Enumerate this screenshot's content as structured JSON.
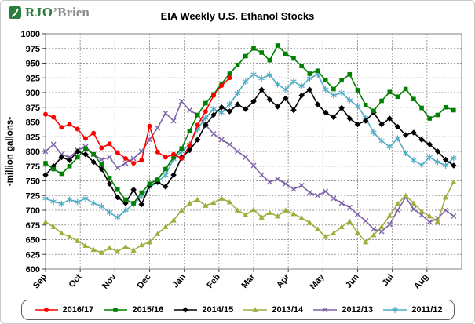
{
  "logo": {
    "green": "RJO",
    "gray": "’Brien"
  },
  "chart_data": {
    "type": "line",
    "title": "EIA Weekly U.S. Ethanol Stocks",
    "ylabel": "-million gallons-",
    "ylim": [
      600,
      1000
    ],
    "yticks": [
      600,
      625,
      650,
      675,
      700,
      725,
      750,
      775,
      800,
      825,
      850,
      875,
      900,
      925,
      950,
      975,
      1000
    ],
    "x_months": [
      "Sep",
      "Oct",
      "Nov",
      "Dec",
      "Jan",
      "Feb",
      "Mar",
      "Apr",
      "May",
      "Jun",
      "Jul",
      "Aug"
    ],
    "n_weeks": 52,
    "grid_on": true,
    "grid_color": "#9a9a9a",
    "legend_position": "bottom",
    "series": [
      {
        "name": "2016/17",
        "color": "#ff0000",
        "marker": "circle",
        "values": [
          863,
          858,
          841,
          846,
          838,
          822,
          831,
          806,
          813,
          798,
          788,
          780,
          785,
          843,
          799,
          790,
          795,
          788,
          810,
          845,
          868,
          895,
          912,
          925
        ]
      },
      {
        "name": "2015/16",
        "color": "#008000",
        "marker": "square",
        "values": [
          780,
          770,
          762,
          775,
          790,
          805,
          795,
          778,
          755,
          735,
          718,
          712,
          730,
          745,
          752,
          770,
          790,
          805,
          835,
          862,
          882,
          897,
          915,
          932,
          947,
          962,
          975,
          968,
          955,
          980,
          966,
          958,
          945,
          932,
          937,
          921,
          906,
          921,
          931,
          904,
          879,
          869,
          886,
          901,
          893,
          906,
          889,
          874,
          856,
          862,
          875,
          870
        ]
      },
      {
        "name": "2014/15",
        "color": "#000000",
        "marker": "diamond",
        "values": [
          760,
          775,
          790,
          785,
          800,
          795,
          782,
          770,
          745,
          722,
          712,
          735,
          710,
          742,
          748,
          740,
          760,
          790,
          802,
          820,
          845,
          862,
          875,
          868,
          880,
          872,
          885,
          905,
          888,
          876,
          890,
          870,
          895,
          905,
          880,
          866,
          858,
          874,
          856,
          846,
          852,
          866,
          846,
          856,
          842,
          828,
          832,
          820,
          812,
          800,
          786,
          776
        ]
      },
      {
        "name": "2013/14",
        "color": "#9fad3c",
        "marker": "triangle",
        "values": [
          680,
          672,
          661,
          655,
          648,
          640,
          633,
          628,
          636,
          630,
          638,
          632,
          641,
          646,
          660,
          672,
          683,
          700,
          712,
          718,
          708,
          713,
          720,
          714,
          700,
          692,
          701,
          688,
          696,
          690,
          700,
          694,
          687,
          679,
          668,
          655,
          661,
          672,
          681,
          662,
          646,
          658,
          672,
          691,
          711,
          725,
          712,
          698,
          690,
          681,
          722,
          748
        ]
      },
      {
        "name": "2012/13",
        "color": "#7e62a8",
        "marker": "x",
        "values": [
          800,
          812,
          795,
          790,
          802,
          808,
          795,
          786,
          790,
          772,
          780,
          788,
          800,
          820,
          840,
          865,
          852,
          885,
          870,
          862,
          845,
          830,
          820,
          812,
          800,
          790,
          776,
          760,
          748,
          753,
          745,
          736,
          742,
          730,
          725,
          732,
          720,
          712,
          705,
          693,
          682,
          668,
          664,
          676,
          700,
          722,
          702,
          692,
          680,
          686,
          700,
          690
        ]
      },
      {
        "name": "2011/12",
        "color": "#4bacc6",
        "marker": "asterisk",
        "values": [
          720,
          715,
          711,
          718,
          714,
          720,
          712,
          707,
          696,
          688,
          700,
          710,
          724,
          739,
          748,
          760,
          787,
          800,
          812,
          838,
          857,
          872,
          866,
          880,
          899,
          919,
          931,
          924,
          930,
          914,
          905,
          919,
          911,
          924,
          931,
          905,
          895,
          900,
          887,
          877,
          857,
          832,
          818,
          808,
          822,
          797,
          785,
          777,
          790,
          782,
          776,
          789
        ]
      }
    ]
  }
}
